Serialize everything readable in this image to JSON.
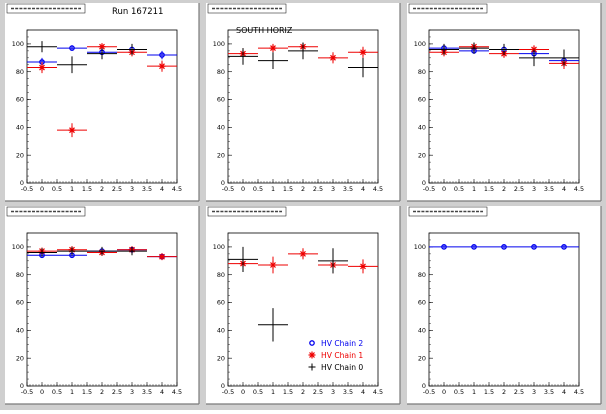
{
  "canvas": {
    "run_label": "Run 167211",
    "region_label": "SOUTH HORIZ",
    "colors": {
      "background": "#cfcfcf",
      "frame": "#ffffff",
      "chain2": "#0000ee",
      "chain1": "#ee0000",
      "chain0": "#000000"
    },
    "legend": [
      {
        "label": "HV Chain 2",
        "marker": "circle",
        "color": "#0000ee"
      },
      {
        "label": "HV Chain 1",
        "marker": "star",
        "color": "#ee0000"
      },
      {
        "label": "HV Chain 0",
        "marker": "cross",
        "color": "#000000"
      }
    ]
  },
  "chart_data": [
    {
      "type": "scatter",
      "title": "",
      "xlim": [
        -0.5,
        4.5
      ],
      "ylim": [
        0,
        110
      ],
      "xticks": [
        -0.5,
        0,
        0.5,
        1,
        1.5,
        2,
        2.5,
        3,
        3.5,
        4,
        4.5
      ],
      "yticks": [
        0,
        20,
        40,
        60,
        80,
        100
      ],
      "xerr": 0.5,
      "series": [
        {
          "name": "HV Chain 2",
          "x": [
            0,
            1,
            2,
            3,
            4
          ],
          "y": [
            87,
            97,
            94,
            96,
            92
          ],
          "yerr": [
            3,
            2,
            2,
            2,
            3
          ]
        },
        {
          "name": "HV Chain 1",
          "x": [
            0,
            1,
            2,
            3,
            4
          ],
          "y": [
            83,
            38,
            98,
            94,
            84
          ],
          "yerr": [
            4,
            5,
            2,
            3,
            4
          ]
        },
        {
          "name": "HV Chain 0",
          "x": [
            0,
            1,
            2,
            3
          ],
          "y": [
            98,
            85,
            93,
            96
          ],
          "yerr": [
            4,
            6,
            4,
            4
          ]
        }
      ]
    },
    {
      "type": "scatter",
      "title": "",
      "xlim": [
        -0.5,
        4.5
      ],
      "ylim": [
        0,
        110
      ],
      "xticks": [
        -0.5,
        0,
        0.5,
        1,
        1.5,
        2,
        2.5,
        3,
        3.5,
        4,
        4.5
      ],
      "yticks": [
        0,
        20,
        40,
        60,
        80,
        100
      ],
      "xerr": 0.5,
      "series": [
        {
          "name": "HV Chain 1",
          "x": [
            0,
            1,
            2,
            3,
            4
          ],
          "y": [
            93,
            97,
            98,
            90,
            94
          ],
          "yerr": [
            4,
            3,
            2,
            4,
            4
          ]
        },
        {
          "name": "HV Chain 0",
          "x": [
            0,
            1,
            2,
            4
          ],
          "y": [
            91,
            88,
            95,
            83
          ],
          "yerr": [
            6,
            6,
            6,
            7
          ]
        }
      ]
    },
    {
      "type": "scatter",
      "title": "",
      "xlim": [
        -0.5,
        4.5
      ],
      "ylim": [
        0,
        110
      ],
      "xticks": [
        -0.5,
        0,
        0.5,
        1,
        1.5,
        2,
        2.5,
        3,
        3.5,
        4,
        4.5
      ],
      "yticks": [
        0,
        20,
        40,
        60,
        80,
        100
      ],
      "xerr": 0.5,
      "series": [
        {
          "name": "HV Chain 2",
          "x": [
            0,
            1,
            2,
            3,
            4
          ],
          "y": [
            97,
            95,
            96,
            93,
            88
          ],
          "yerr": [
            2,
            2,
            2,
            3,
            3
          ]
        },
        {
          "name": "HV Chain 1",
          "x": [
            0,
            1,
            2,
            3,
            4
          ],
          "y": [
            94,
            98,
            93,
            96,
            86
          ],
          "yerr": [
            3,
            3,
            3,
            3,
            4
          ]
        },
        {
          "name": "HV Chain 0",
          "x": [
            0,
            1,
            2,
            3,
            4
          ],
          "y": [
            96,
            97,
            96,
            90,
            90
          ],
          "yerr": [
            4,
            4,
            4,
            6,
            6
          ]
        }
      ]
    },
    {
      "type": "scatter",
      "title": "",
      "xlim": [
        -0.5,
        4.5
      ],
      "ylim": [
        0,
        110
      ],
      "xticks": [
        -0.5,
        0,
        0.5,
        1,
        1.5,
        2,
        2.5,
        3,
        3.5,
        4,
        4.5
      ],
      "yticks": [
        0,
        20,
        40,
        60,
        80,
        100
      ],
      "xerr": 0.5,
      "series": [
        {
          "name": "HV Chain 2",
          "x": [
            0,
            1,
            2,
            3,
            4
          ],
          "y": [
            94,
            94,
            97,
            98,
            93
          ],
          "yerr": [
            2,
            2,
            2,
            2,
            2
          ]
        },
        {
          "name": "HV Chain 1",
          "x": [
            0,
            1,
            2,
            3,
            4
          ],
          "y": [
            97,
            98,
            96,
            98,
            93
          ],
          "yerr": [
            2,
            2,
            2,
            2,
            2
          ]
        },
        {
          "name": "HV Chain 0",
          "x": [
            0,
            1,
            2,
            3
          ],
          "y": [
            96,
            97,
            97,
            97
          ],
          "yerr": [
            3,
            3,
            3,
            3
          ]
        }
      ]
    },
    {
      "type": "scatter",
      "title": "",
      "xlim": [
        -0.5,
        4.5
      ],
      "ylim": [
        0,
        110
      ],
      "xticks": [
        -0.5,
        0,
        0.5,
        1,
        1.5,
        2,
        2.5,
        3,
        3.5,
        4,
        4.5
      ],
      "yticks": [
        0,
        20,
        40,
        60,
        80,
        100
      ],
      "xerr": 0.5,
      "series": [
        {
          "name": "HV Chain 1",
          "x": [
            0,
            1,
            2,
            3,
            4
          ],
          "y": [
            88,
            87,
            95,
            87,
            86
          ],
          "yerr": [
            6,
            6,
            4,
            6,
            5
          ]
        },
        {
          "name": "HV Chain 0",
          "x": [
            0,
            1,
            3
          ],
          "y": [
            91,
            44,
            90
          ],
          "yerr": [
            9,
            12,
            9
          ]
        }
      ]
    },
    {
      "type": "scatter",
      "title": "",
      "xlim": [
        -0.5,
        4.5
      ],
      "ylim": [
        0,
        110
      ],
      "xticks": [
        -0.5,
        0,
        0.5,
        1,
        1.5,
        2,
        2.5,
        3,
        3.5,
        4,
        4.5
      ],
      "yticks": [
        0,
        20,
        40,
        60,
        80,
        100
      ],
      "xerr": 0.5,
      "series": [
        {
          "name": "HV Chain 2",
          "x": [
            0,
            1,
            2,
            3,
            4
          ],
          "y": [
            100,
            100,
            100,
            100,
            100
          ],
          "yerr": [
            1,
            1,
            1,
            1,
            1
          ]
        }
      ]
    }
  ]
}
